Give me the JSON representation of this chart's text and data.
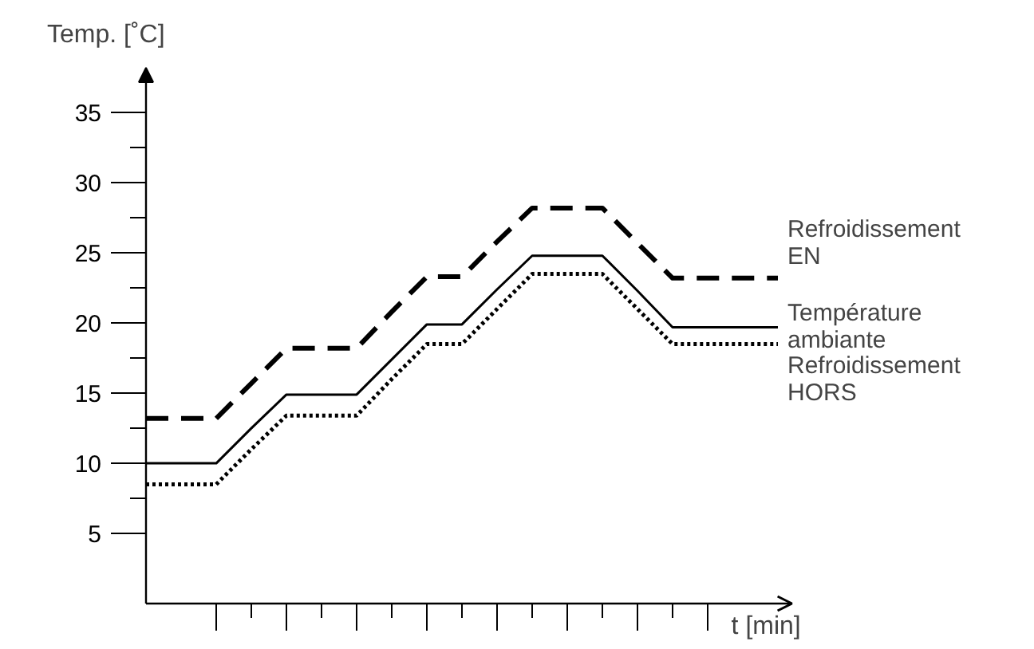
{
  "chart_data": {
    "type": "line",
    "ylabel": "Temp. [˚C]",
    "xlabel": "t [min]",
    "categories": [
      null,
      null,
      null,
      null,
      null,
      null,
      null,
      null,
      null,
      null,
      null,
      null,
      null,
      null,
      null,
      null,
      null,
      null,
      null
    ],
    "ylim": [
      0,
      38.2
    ],
    "yticks": [
      5,
      {
        "value": 7.5,
        "label": null
      },
      10,
      {
        "value": 12.5,
        "label": null
      },
      15,
      {
        "value": 17.5,
        "label": null
      },
      20,
      {
        "value": 22.5,
        "label": null
      },
      25,
      {
        "value": 27.5,
        "label": null
      },
      30,
      {
        "value": 32.5,
        "label": null
      },
      35
    ],
    "grid": false,
    "marker": "none",
    "series": [
      {
        "name": "Refroidissement\nEN",
        "color": "#000000",
        "line_style": "dashed",
        "values": [
          13.2,
          13.2,
          13.2,
          15.7,
          18.2,
          18.2,
          18.2,
          20.8,
          23.3,
          23.3,
          25.8,
          28.2,
          28.2,
          28.2,
          25.7,
          23.2,
          23.2,
          23.2,
          23.2
        ]
      },
      {
        "name": "Température\nambiante",
        "color": "#000000",
        "line_style": "solid",
        "values": [
          10,
          10,
          10,
          12.5,
          14.9,
          14.9,
          14.9,
          17.4,
          19.9,
          19.9,
          22.4,
          24.8,
          24.8,
          24.8,
          22.3,
          19.7,
          19.7,
          19.7,
          19.7
        ]
      },
      {
        "name": "Refroidissement\nHORS",
        "color": "#000000",
        "line_style": "dotted",
        "values": [
          8.5,
          8.5,
          8.5,
          11.0,
          13.4,
          13.4,
          13.4,
          16.0,
          18.5,
          18.5,
          21.0,
          23.5,
          23.5,
          23.5,
          21.0,
          18.5,
          18.5,
          18.5,
          18.5
        ]
      }
    ]
  }
}
